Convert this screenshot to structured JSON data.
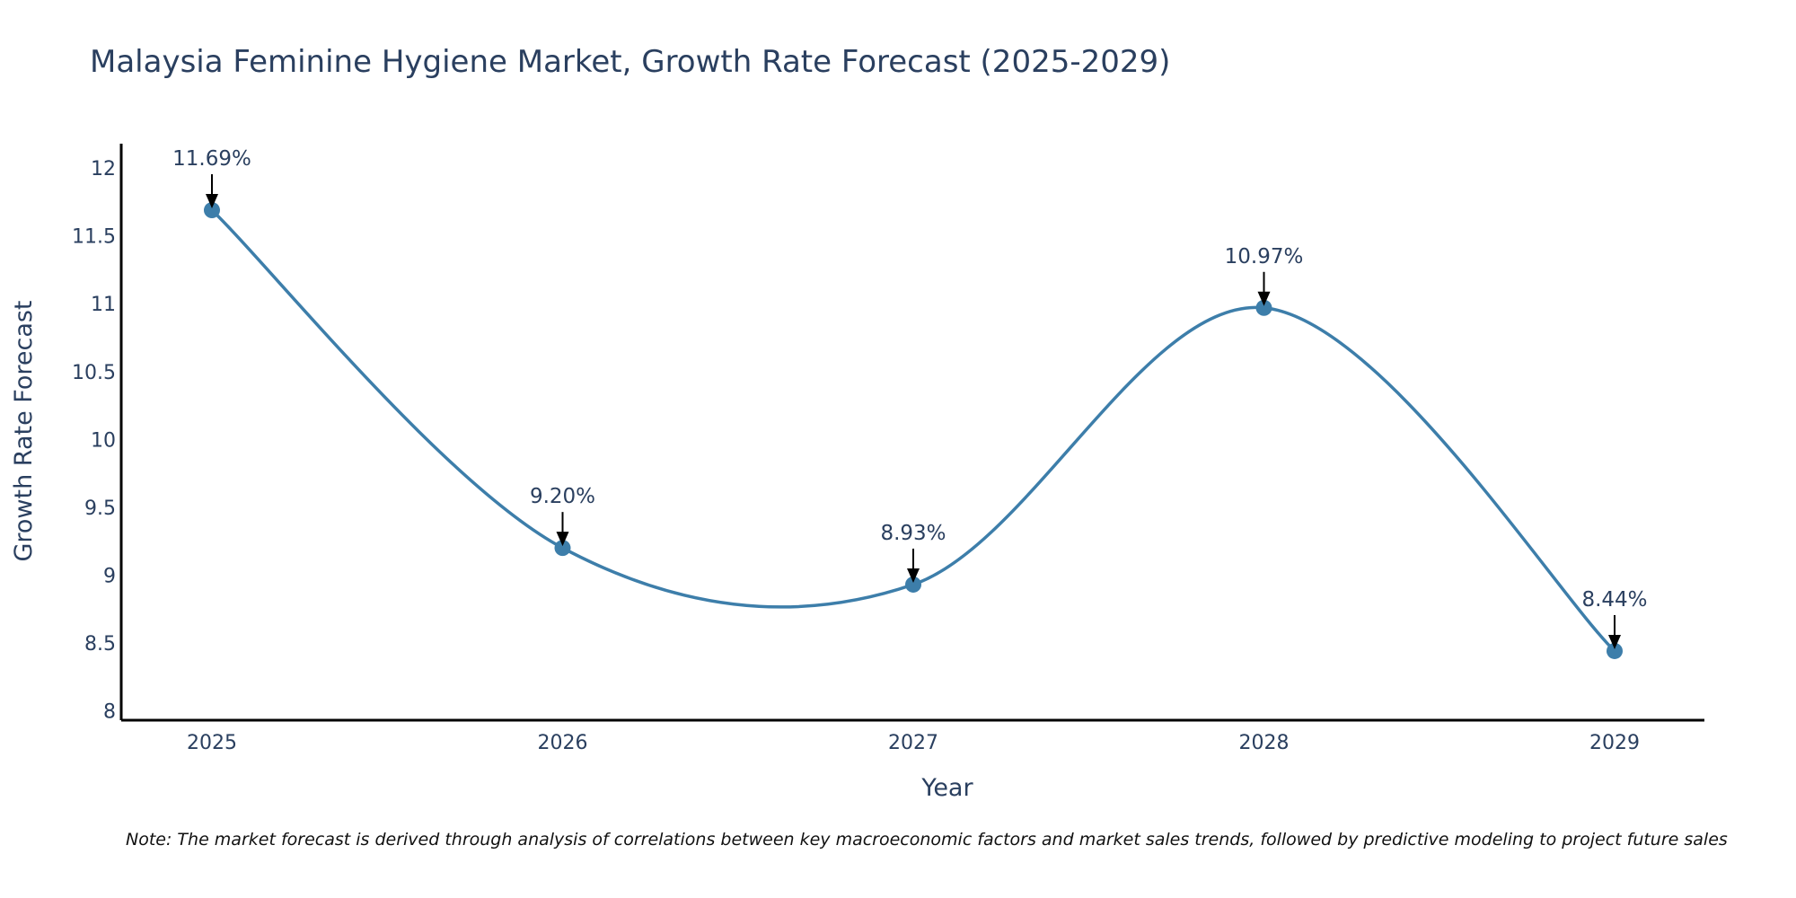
{
  "chart_data": {
    "type": "line",
    "title": "Malaysia Feminine Hygiene Market, Growth Rate Forecast (2025-2029)",
    "xlabel": "Year",
    "ylabel": "Growth Rate Forecast",
    "categories": [
      "2025",
      "2026",
      "2027",
      "2028",
      "2029"
    ],
    "series": [
      {
        "name": "Growth Rate Forecast",
        "values": [
          11.69,
          9.2,
          8.93,
          10.97,
          8.44
        ]
      }
    ],
    "data_labels": [
      "11.69%",
      "9.20%",
      "8.93%",
      "10.97%",
      "8.44%"
    ],
    "y_ticks": [
      "8",
      "8.5",
      "9",
      "9.5",
      "10",
      "10.5",
      "11",
      "11.5",
      "12"
    ],
    "ylim": [
      7.93,
      12.18
    ],
    "grid": false,
    "line_shape": "spline",
    "note": "Note: The market forecast is derived through analysis of correlations between key macroeconomic factors and market sales trends, followed by predictive modeling to project future sales"
  },
  "colors": {
    "line": "#3d7eaa",
    "marker": "#3d7eaa",
    "axis": "#000000",
    "text": "#2a3f5f",
    "arrow": "#000000"
  }
}
